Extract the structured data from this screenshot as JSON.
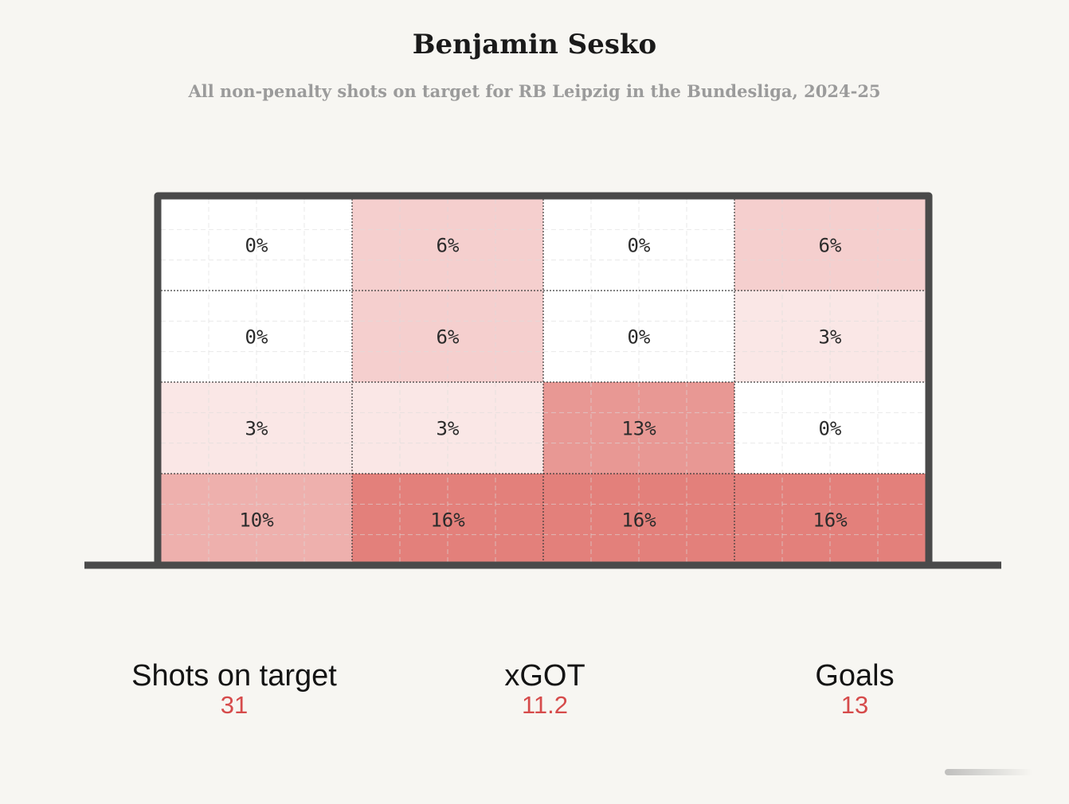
{
  "title": "Benjamin Sesko",
  "subtitle": "All non-penalty shots on target for RB Leipzig in the Bundesliga, 2024-25",
  "colors": {
    "background": "#f7f6f2",
    "frame": "#4a4a4a",
    "accent": "#d64b4b",
    "heat_low": "#ffffff",
    "heat_high": "#e3807b"
  },
  "chart_data": {
    "type": "heatmap",
    "title": "Benjamin Sesko",
    "subtitle": "All non-penalty shots on target for RB Leipzig in the Bundesliga, 2024-25",
    "rows": 4,
    "cols": 4,
    "values": [
      [
        0,
        6,
        0,
        6
      ],
      [
        0,
        6,
        0,
        3
      ],
      [
        3,
        3,
        13,
        0
      ],
      [
        10,
        16,
        16,
        16
      ]
    ],
    "labels": [
      [
        "0%",
        "6%",
        "0%",
        "6%"
      ],
      [
        "0%",
        "6%",
        "0%",
        "3%"
      ],
      [
        "3%",
        "3%",
        "13%",
        "0%"
      ],
      [
        "10%",
        "16%",
        "16%",
        "16%"
      ]
    ],
    "unit": "%",
    "grid": true,
    "legend": "none"
  },
  "stats": {
    "shots_label": "Shots on target",
    "shots_value": "31",
    "xgot_label": "xGOT",
    "xgot_value": "11.2",
    "goals_label": "Goals",
    "goals_value": "13"
  }
}
